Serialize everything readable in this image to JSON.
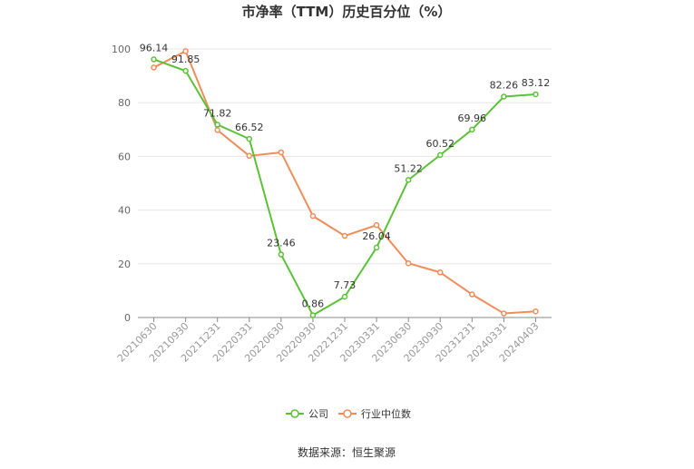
{
  "chart_data": {
    "type": "line",
    "title": "市净率（TTM）历史百分位（%）",
    "categories": [
      "20210630",
      "20210930",
      "20211231",
      "20220331",
      "20220630",
      "20220930",
      "20221231",
      "20230331",
      "20230630",
      "20230930",
      "20231231",
      "20240331",
      "20240403"
    ],
    "ylim": [
      0,
      100
    ],
    "yticks": [
      0,
      20,
      40,
      60,
      80,
      100
    ],
    "grid": true,
    "legend_position": "bottom",
    "series": [
      {
        "name": "公司",
        "color": "#5bc236",
        "values": [
          96.14,
          91.85,
          71.82,
          66.52,
          23.46,
          0.86,
          7.73,
          26.04,
          51.22,
          60.52,
          69.96,
          82.26,
          83.12
        ],
        "labels": [
          "96.14",
          "91.85",
          "71.82",
          "66.52",
          "23.46",
          "0.86",
          "7.73",
          "26.04",
          "51.22",
          "60.52",
          "69.96",
          "82.26",
          "83.12"
        ]
      },
      {
        "name": "行业中位数",
        "color": "#f08c5a",
        "values": [
          93.1,
          99.2,
          69.8,
          60.2,
          61.5,
          37.8,
          30.4,
          34.4,
          20.2,
          16.8,
          8.6,
          1.5,
          2.3
        ]
      }
    ],
    "source": "数据来源：恒生聚源"
  }
}
